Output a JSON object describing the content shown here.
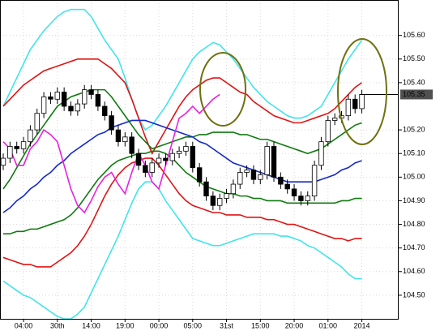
{
  "chart_data": {
    "type": "candlestick",
    "categories": [
      null,
      null,
      null,
      "04:00",
      null,
      null,
      null,
      null,
      "30th",
      null,
      null,
      null,
      null,
      "14:00",
      null,
      null,
      null,
      null,
      "19:00",
      null,
      null,
      null,
      null,
      "00:00",
      null,
      null,
      null,
      null,
      "05:00",
      null,
      null,
      null,
      null,
      "31st",
      null,
      null,
      null,
      null,
      "15:00",
      null,
      null,
      null,
      null,
      "20:00",
      null,
      null,
      null,
      null,
      "01:00",
      null,
      null,
      null,
      null,
      "2014"
    ],
    "open": [
      105.05,
      105.08,
      105.13,
      105.12,
      105.15,
      105.2,
      105.27,
      105.34,
      105.33,
      105.36,
      105.3,
      105.28,
      105.31,
      105.37,
      105.35,
      105.3,
      105.26,
      105.2,
      105.15,
      105.17,
      105.1,
      105.05,
      105.02,
      105.06,
      105.08,
      105.07,
      105.1,
      105.11,
      105.13,
      105.04,
      104.98,
      104.92,
      104.88,
      104.91,
      104.93,
      104.97,
      105.02,
      105.03,
      104.99,
      105.01,
      105.13,
      105.0,
      104.97,
      104.95,
      104.92,
      104.9,
      104.92,
      105.05,
      105.15,
      105.24,
      105.25,
      105.26,
      105.33,
      105.29
    ],
    "high": [
      105.1,
      105.15,
      105.15,
      105.17,
      105.22,
      105.29,
      105.36,
      105.36,
      105.38,
      105.38,
      105.32,
      105.33,
      105.39,
      105.39,
      105.37,
      105.32,
      105.28,
      105.22,
      105.19,
      105.19,
      105.12,
      105.07,
      105.08,
      105.1,
      105.1,
      105.12,
      105.13,
      105.15,
      105.15,
      105.06,
      105.0,
      104.94,
      104.93,
      104.95,
      104.99,
      105.04,
      105.05,
      105.05,
      105.03,
      105.15,
      105.15,
      105.02,
      104.99,
      104.97,
      104.94,
      104.94,
      105.07,
      105.17,
      105.26,
      105.27,
      105.28,
      105.35,
      105.35,
      105.37
    ],
    "low": [
      105.03,
      105.06,
      105.1,
      105.1,
      105.13,
      105.18,
      105.25,
      105.31,
      105.31,
      105.28,
      105.26,
      105.26,
      105.29,
      105.33,
      105.28,
      105.24,
      105.18,
      105.13,
      105.13,
      105.08,
      105.03,
      105.0,
      105.0,
      105.04,
      105.05,
      105.05,
      105.08,
      105.09,
      105.02,
      104.96,
      104.9,
      104.86,
      104.86,
      104.89,
      104.91,
      104.95,
      105.0,
      104.97,
      104.97,
      104.99,
      104.98,
      104.95,
      104.93,
      104.9,
      104.88,
      104.88,
      104.9,
      105.03,
      105.13,
      105.22,
      105.23,
      105.24,
      105.27,
      105.27
    ],
    "close": [
      105.08,
      105.13,
      105.12,
      105.15,
      105.2,
      105.27,
      105.34,
      105.33,
      105.36,
      105.3,
      105.28,
      105.31,
      105.37,
      105.35,
      105.3,
      105.26,
      105.2,
      105.15,
      105.17,
      105.1,
      105.05,
      105.02,
      105.06,
      105.08,
      105.07,
      105.1,
      105.11,
      105.13,
      105.04,
      104.98,
      104.92,
      104.88,
      104.91,
      104.93,
      104.97,
      105.02,
      105.03,
      104.99,
      105.01,
      105.13,
      105.0,
      104.97,
      104.95,
      104.92,
      104.9,
      104.92,
      105.05,
      105.15,
      105.24,
      105.25,
      105.26,
      105.33,
      105.29,
      105.35
    ],
    "up_color": "#ffffff",
    "down_color": "#000000",
    "candle_edge": "#000000",
    "series": [
      {
        "color": "#40e4ec",
        "values": [
          105.3,
          105.36,
          105.42,
          105.48,
          105.54,
          105.58,
          105.62,
          105.65,
          105.68,
          105.7,
          105.71,
          105.71,
          105.71,
          105.68,
          105.63,
          105.58,
          105.54,
          105.5,
          105.42,
          105.33,
          105.25,
          105.2,
          105.22,
          105.26,
          105.3,
          105.35,
          105.4,
          105.45,
          105.5,
          105.53,
          105.55,
          105.57,
          105.56,
          105.53,
          105.5,
          105.46,
          105.42,
          105.38,
          105.35,
          105.32,
          105.3,
          105.28,
          105.26,
          105.25,
          105.25,
          105.26,
          105.28,
          105.3,
          105.35,
          105.4,
          105.45,
          105.5,
          105.54,
          105.58
        ]
      },
      {
        "color": "#e01414",
        "values": [
          105.3,
          105.33,
          105.36,
          105.39,
          105.41,
          105.43,
          105.45,
          105.46,
          105.47,
          105.48,
          105.49,
          105.5,
          105.5,
          105.5,
          105.5,
          105.48,
          105.46,
          105.43,
          105.4,
          105.33,
          105.25,
          105.17,
          105.1,
          105.15,
          105.2,
          105.25,
          105.3,
          105.34,
          105.37,
          105.39,
          105.41,
          105.42,
          105.42,
          105.4,
          105.38,
          105.36,
          105.35,
          105.32,
          105.3,
          105.28,
          105.26,
          105.25,
          105.24,
          105.23,
          105.23,
          105.24,
          105.25,
          105.26,
          105.27,
          105.29,
          105.32,
          105.35,
          105.38,
          105.4
        ]
      },
      {
        "color": "#107a10",
        "values": [
          104.95,
          104.99,
          105.04,
          105.09,
          105.14,
          105.18,
          105.22,
          105.26,
          105.3,
          105.32,
          105.34,
          105.35,
          105.36,
          105.37,
          105.37,
          105.37,
          105.34,
          105.3,
          105.26,
          105.22,
          105.18,
          105.15,
          105.12,
          105.13,
          105.14,
          105.15,
          105.16,
          105.17,
          105.17,
          105.18,
          105.18,
          105.19,
          105.19,
          105.19,
          105.19,
          105.18,
          105.18,
          105.17,
          105.16,
          105.16,
          105.15,
          105.14,
          105.13,
          105.12,
          105.11,
          105.1,
          105.11,
          105.12,
          105.14,
          105.16,
          105.18,
          105.2,
          105.22,
          105.23
        ]
      },
      {
        "color": "#1428c8",
        "values": [
          104.85,
          104.87,
          104.9,
          104.92,
          104.95,
          104.97,
          105.0,
          105.02,
          105.05,
          105.07,
          105.1,
          105.12,
          105.14,
          105.16,
          105.18,
          105.19,
          105.21,
          105.22,
          105.23,
          105.24,
          105.24,
          105.24,
          105.23,
          105.22,
          105.21,
          105.2,
          105.19,
          105.18,
          105.17,
          105.15,
          105.14,
          105.12,
          105.1,
          105.08,
          105.06,
          105.05,
          105.04,
          105.03,
          105.02,
          105.01,
          105.0,
          104.99,
          104.98,
          104.98,
          104.98,
          104.98,
          104.98,
          104.99,
          105.0,
          105.01,
          105.03,
          105.04,
          105.06,
          105.07
        ]
      },
      {
        "color": "#107a10",
        "values": [
          104.76,
          104.76,
          104.77,
          104.77,
          104.78,
          104.78,
          104.79,
          104.8,
          104.81,
          104.82,
          104.84,
          104.87,
          104.91,
          104.95,
          104.99,
          105.02,
          105.05,
          105.07,
          105.08,
          105.09,
          105.1,
          105.1,
          105.11,
          105.11,
          105.1,
          105.08,
          105.05,
          105.02,
          105.0,
          104.98,
          104.96,
          104.95,
          104.94,
          104.93,
          104.93,
          104.92,
          104.92,
          104.91,
          104.91,
          104.9,
          104.9,
          104.9,
          104.89,
          104.89,
          104.89,
          104.89,
          104.89,
          104.89,
          104.89,
          104.89,
          104.9,
          104.9,
          104.91,
          104.91
        ]
      },
      {
        "color": "#e01414",
        "values": [
          104.66,
          104.65,
          104.64,
          104.63,
          104.63,
          104.62,
          104.62,
          104.62,
          104.64,
          104.66,
          104.68,
          104.71,
          104.75,
          104.8,
          104.86,
          104.92,
          104.97,
          105.01,
          105.04,
          105.06,
          105.07,
          105.08,
          105.08,
          105.05,
          105.01,
          104.97,
          104.93,
          104.9,
          104.88,
          104.87,
          104.86,
          104.85,
          104.85,
          104.84,
          104.84,
          104.84,
          104.83,
          104.83,
          104.83,
          104.82,
          104.82,
          104.81,
          104.8,
          104.8,
          104.79,
          104.78,
          104.77,
          104.76,
          104.75,
          104.74,
          104.74,
          104.73,
          104.74,
          104.74
        ]
      },
      {
        "color": "#40e4ec",
        "values": [
          104.56,
          104.54,
          104.52,
          104.5,
          104.49,
          104.47,
          104.45,
          104.43,
          104.41,
          104.4,
          104.4,
          104.42,
          104.45,
          104.51,
          104.57,
          104.63,
          104.69,
          104.75,
          104.82,
          104.89,
          104.95,
          104.98,
          104.98,
          104.95,
          104.9,
          104.86,
          104.82,
          104.78,
          104.74,
          104.73,
          104.72,
          104.71,
          104.71,
          104.72,
          104.73,
          104.74,
          104.75,
          104.76,
          104.76,
          104.76,
          104.76,
          104.75,
          104.75,
          104.74,
          104.73,
          104.71,
          104.7,
          104.68,
          104.66,
          104.64,
          104.62,
          104.59,
          104.57,
          104.57
        ]
      },
      {
        "color": "#e820e0",
        "values": [
          105.15,
          105.12,
          105.05,
          105.05,
          105.12,
          105.15,
          105.2,
          105.18,
          105.15,
          105.05,
          104.95,
          104.88,
          104.85,
          104.9,
          104.96,
          105.0,
          105.02,
          104.97,
          104.93,
          105.02,
          105.1,
          105.05,
          104.98,
          104.95,
          105.05,
          105.15,
          105.25,
          105.27,
          105.3,
          105.27,
          105.3,
          105.33,
          105.35,
          null,
          null,
          null,
          null,
          null,
          null,
          null,
          null,
          null,
          null,
          null,
          null,
          null,
          null,
          null,
          null,
          null,
          null,
          null,
          null,
          null
        ]
      }
    ],
    "ylim": [
      104.4,
      105.75
    ],
    "yticks": [
      {
        "value": 104.5,
        "label": "104.50"
      },
      {
        "value": 104.6,
        "label": "104.60"
      },
      {
        "value": 104.7,
        "label": "104.70"
      },
      {
        "value": 104.8,
        "label": "104.80"
      },
      {
        "value": 104.9,
        "label": "104.90"
      },
      {
        "value": 105.0,
        "label": "105.00"
      },
      {
        "value": 105.1,
        "label": "105.10"
      },
      {
        "value": 105.2,
        "label": "105.20"
      },
      {
        "value": 105.4,
        "label": "105.40"
      },
      {
        "value": 105.5,
        "label": "105.50"
      },
      {
        "value": 105.6,
        "label": "105.60"
      }
    ],
    "last_price": 105.35,
    "grid": true
  }
}
